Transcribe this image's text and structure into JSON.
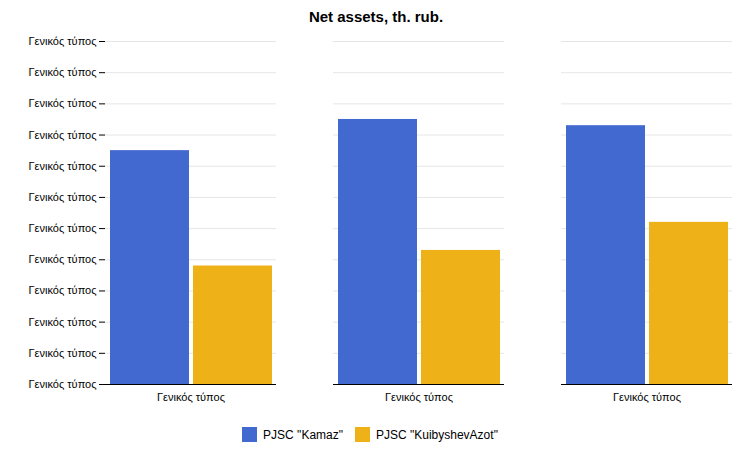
{
  "chart_data": {
    "type": "bar",
    "title": "Net assets, th. rub.",
    "categories": [
      "Γενικός τύπος",
      "Γενικός τύπος",
      "Γενικός τύπος"
    ],
    "series": [
      {
        "name": "PJSC \"Kamaz\"",
        "values": [
          75,
          85,
          83
        ]
      },
      {
        "name": "PJSC \"KuibyshevAzot\"",
        "values": [
          38,
          43,
          52
        ]
      }
    ],
    "ylim": [
      0,
      110
    ],
    "yticks": [
      {
        "value": 0,
        "label": "Γενικός τύπος"
      },
      {
        "value": 10,
        "label": "Γενικός τύπος"
      },
      {
        "value": 20,
        "label": "Γενικός τύπος"
      },
      {
        "value": 30,
        "label": "Γενικός τύπος"
      },
      {
        "value": 40,
        "label": "Γενικός τύπος"
      },
      {
        "value": 50,
        "label": "Γενικός τύπος"
      },
      {
        "value": 60,
        "label": "Γενικός τύπος"
      },
      {
        "value": 70,
        "label": "Γενικός τύπος"
      },
      {
        "value": 80,
        "label": "Γενικός τύπος"
      },
      {
        "value": 90,
        "label": "Γενικός τύπος"
      },
      {
        "value": 100,
        "label": "Γενικός τύπος"
      },
      {
        "value": 110,
        "label": "Γενικός τύπος"
      }
    ],
    "grid": true,
    "legend": "bottom"
  }
}
